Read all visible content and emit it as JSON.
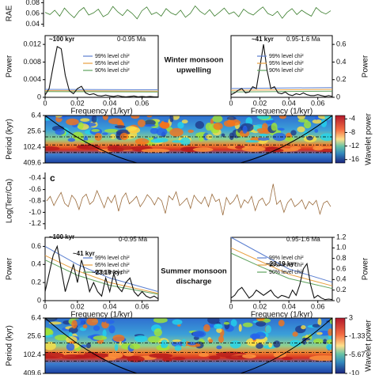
{
  "chart_data": [
    {
      "type": "line",
      "ylabel": "RAE",
      "color": "#3a7d2c",
      "ylim": [
        0.035,
        0.085
      ],
      "yticks": [
        0.04,
        0.06,
        0.08
      ],
      "values": [
        0.062,
        0.058,
        0.066,
        0.055,
        0.07,
        0.06,
        0.052,
        0.064,
        0.071,
        0.057,
        0.061,
        0.068,
        0.054,
        0.059,
        0.073,
        0.063,
        0.056,
        0.067,
        0.06,
        0.05,
        0.065,
        0.072,
        0.058,
        0.062,
        0.055,
        0.069,
        0.061,
        0.057,
        0.066,
        0.053,
        0.06,
        0.074,
        0.064,
        0.058,
        0.067,
        0.055,
        0.062,
        0.07,
        0.059,
        0.063,
        0.054,
        0.068,
        0.061,
        0.057,
        0.065,
        0.072,
        0.06,
        0.056,
        0.064,
        0.051,
        0.062,
        0.069,
        0.058,
        0.066,
        0.06,
        0.055,
        0.071,
        0.063,
        0.059,
        0.065
      ]
    },
    {
      "type": "line",
      "ylabel": "Power",
      "xlabel": "Frequency (1/kyr)",
      "color": "#111111",
      "xlim": [
        0,
        0.07
      ],
      "xticks": [
        0,
        0.02,
        0.04,
        0.06
      ],
      "ylim": [
        0,
        0.014
      ],
      "yticks": [
        0,
        0.004,
        0.008,
        0.012
      ],
      "x": [
        0,
        0.0025,
        0.005,
        0.0075,
        0.01,
        0.0125,
        0.015,
        0.0175,
        0.02,
        0.0225,
        0.025,
        0.0275,
        0.03,
        0.0325,
        0.035,
        0.0375,
        0.04,
        0.0425,
        0.045,
        0.0475,
        0.05,
        0.0525,
        0.055,
        0.0575,
        0.06,
        0.0625,
        0.065,
        0.0675,
        0.07
      ],
      "values": [
        0.0005,
        0.002,
        0.007,
        0.0115,
        0.011,
        0.005,
        0.0015,
        0.0008,
        0.002,
        0.0025,
        0.001,
        0.0006,
        0.0008,
        0.0004,
        0.0003,
        0.0005,
        0.0003,
        0.0002,
        0.0004,
        0.0002,
        0.0001,
        0.0002,
        0.0003,
        0.0001,
        0.0002,
        0.0001,
        0.0002,
        0.0001,
        0.0001
      ],
      "series": [
        {
          "name": "99% level chi²",
          "color": "#5b7fd0",
          "x": [
            0,
            0.07
          ],
          "values": [
            0.0018,
            0.0017
          ]
        },
        {
          "name": "95% level chi²",
          "color": "#e8a040",
          "x": [
            0,
            0.07
          ],
          "values": [
            0.0015,
            0.0014
          ]
        },
        {
          "name": "90% level chi²",
          "color": "#5fa35f",
          "x": [
            0,
            0.07
          ],
          "values": [
            0.0013,
            0.0012
          ]
        }
      ],
      "annotations": [
        "~100 kyr",
        "0-0.95 Ma"
      ],
      "note": [
        "Winter monsoon",
        "upwelling"
      ]
    },
    {
      "type": "line",
      "ylabel": "Power",
      "xlabel": "Frequency (1/kyr)",
      "y_axis": "right",
      "color": "#111111",
      "xlim": [
        0,
        0.07
      ],
      "xticks": [
        0,
        0.02,
        0.04,
        0.06
      ],
      "ylim": [
        0,
        0.7
      ],
      "yticks": [
        0,
        0.2,
        0.4,
        0.6
      ],
      "x": [
        0,
        0.0025,
        0.005,
        0.0075,
        0.01,
        0.0125,
        0.015,
        0.0175,
        0.02,
        0.0225,
        0.025,
        0.0275,
        0.03,
        0.0325,
        0.035,
        0.0375,
        0.04,
        0.0425,
        0.045,
        0.0475,
        0.05,
        0.0525,
        0.055,
        0.0575,
        0.06,
        0.0625,
        0.065,
        0.0675,
        0.07
      ],
      "values": [
        0.03,
        0.05,
        0.08,
        0.1,
        0.05,
        0.06,
        0.12,
        0.1,
        0.35,
        0.6,
        0.3,
        0.1,
        0.12,
        0.05,
        0.04,
        0.06,
        0.03,
        0.02,
        0.04,
        0.03,
        0.05,
        0.03,
        0.02,
        0.02,
        0.03,
        0.02,
        0.01,
        0.02,
        0.01
      ],
      "series": [
        {
          "name": "99% level chi²",
          "color": "#5b7fd0",
          "x": [
            0,
            0.07
          ],
          "values": [
            0.1,
            0.11
          ]
        },
        {
          "name": "95% level chi²",
          "color": "#e8a040",
          "x": [
            0,
            0.07
          ],
          "values": [
            0.08,
            0.09
          ]
        },
        {
          "name": "90% level chi²",
          "color": "#5fa35f",
          "x": [
            0,
            0.07
          ],
          "values": [
            0.06,
            0.07
          ]
        }
      ],
      "annotations": [
        "~41 kyr",
        "0.95-1.6 Ma"
      ]
    },
    {
      "type": "heatmap",
      "ylabel": "Period (kyr)",
      "ylog": true,
      "y_reversed": true,
      "ylim": [
        6.4,
        409.6
      ],
      "yticks": [
        6.4,
        25.6,
        102.4,
        409.6
      ],
      "clabel": "Wavelet power",
      "clim": [
        -17,
        -3
      ],
      "colorbar_ticks": [
        -4,
        -8,
        -12,
        -16
      ]
    },
    {
      "type": "line",
      "panel_label": "c",
      "ylabel": "Log(Terr/Ca)",
      "color": "#9a6b3c",
      "ylim": [
        -1.3,
        -0.3
      ],
      "yticks": [
        -0.4,
        -0.6,
        -0.8,
        {
          "value": -1,
          "label": "-1.0"
        },
        -1.2
      ],
      "values": [
        -0.8,
        -0.72,
        -0.88,
        -0.76,
        -0.65,
        -0.84,
        -0.9,
        -0.7,
        -0.78,
        -0.95,
        -0.74,
        -0.68,
        -0.86,
        -0.8,
        -0.62,
        -0.77,
        -0.92,
        -0.73,
        -0.83,
        -0.7,
        -0.98,
        -0.75,
        -0.66,
        -0.85,
        -0.79,
        -0.72,
        -0.9,
        -0.81,
        -0.69,
        -0.76,
        -0.87,
        -0.74,
        -0.8,
        -1.02,
        -0.71,
        -0.78,
        -0.64,
        -0.88,
        -0.82,
        -0.75,
        -0.93,
        -0.7,
        -0.79,
        -0.85,
        -0.73,
        -0.9,
        -0.68,
        -0.81,
        -0.77,
        -1.05,
        -0.74,
        -0.86,
        -0.8,
        -0.69,
        -0.92,
        -0.78,
        -0.84,
        -0.72,
        -0.97,
        -0.8,
        -0.75,
        -0.88,
        -0.82,
        -0.5,
        -0.86,
        -0.79,
        -1.0,
        -0.83,
        -0.76,
        -0.9,
        -0.85,
        -0.78,
        -0.94,
        -0.81,
        -0.87,
        -0.79,
        -1.03,
        -0.84,
        -0.8,
        -0.9
      ]
    },
    {
      "type": "line",
      "ylabel": "Power",
      "xlabel": "Frequency (1/kyr)",
      "color": "#111111",
      "xlim": [
        0,
        0.07
      ],
      "xticks": [
        0,
        0.02,
        0.04,
        0.06
      ],
      "ylim": [
        0,
        0.7
      ],
      "yticks": [
        0,
        0.2,
        0.4,
        0.6
      ],
      "x": [
        0,
        0.0025,
        0.005,
        0.0075,
        0.01,
        0.0125,
        0.015,
        0.0175,
        0.02,
        0.0225,
        0.025,
        0.0275,
        0.03,
        0.0325,
        0.035,
        0.0375,
        0.04,
        0.0425,
        0.045,
        0.0475,
        0.05,
        0.0525,
        0.055,
        0.0575,
        0.06,
        0.0625,
        0.065,
        0.0675,
        0.07
      ],
      "values": [
        0.1,
        0.3,
        0.5,
        0.6,
        0.35,
        0.1,
        0.25,
        0.4,
        0.2,
        0.45,
        0.3,
        0.1,
        0.2,
        0.1,
        0.05,
        0.25,
        0.1,
        0.3,
        0.15,
        0.1,
        0.2,
        0.25,
        0.1,
        0.05,
        0.1,
        0.05,
        0.03,
        0.05,
        0.02
      ],
      "series": [
        {
          "name": "99% level chi²",
          "color": "#5b7fd0",
          "x": [
            0,
            0.02,
            0.04,
            0.07
          ],
          "values": [
            0.6,
            0.4,
            0.25,
            0.1
          ]
        },
        {
          "name": "95% level chi²",
          "color": "#e8a040",
          "x": [
            0,
            0.02,
            0.04,
            0.07
          ],
          "values": [
            0.5,
            0.33,
            0.2,
            0.08
          ]
        },
        {
          "name": "90% level chi²",
          "color": "#5fa35f",
          "x": [
            0,
            0.02,
            0.04,
            0.07
          ],
          "values": [
            0.45,
            0.28,
            0.17,
            0.07
          ]
        }
      ],
      "annotations": [
        "~100 kyr",
        "~41 kyr",
        "~23,19 kyr",
        "0-0.95 Ma"
      ],
      "note": [
        "Summer monsoon",
        "discharge"
      ]
    },
    {
      "type": "line",
      "ylabel": "Power",
      "xlabel": "Frequency (1/kyr)",
      "y_axis": "right",
      "color": "#111111",
      "xlim": [
        0,
        0.07
      ],
      "xticks": [
        0,
        0.02,
        0.04,
        0.06
      ],
      "ylim": [
        0,
        1.2
      ],
      "yticks": [
        0,
        0.2,
        0.4,
        0.6,
        0.8,
        {
          "value": 1,
          "label": "1.0"
        },
        1.2
      ],
      "x": [
        0,
        0.0025,
        0.005,
        0.0075,
        0.01,
        0.0125,
        0.015,
        0.0175,
        0.02,
        0.0225,
        0.025,
        0.0275,
        0.03,
        0.0325,
        0.035,
        0.0375,
        0.04,
        0.0425,
        0.045,
        0.0475,
        0.05,
        0.0525,
        0.055,
        0.0575,
        0.06,
        0.0625,
        0.065,
        0.0675,
        0.07
      ],
      "values": [
        0.05,
        0.1,
        0.2,
        0.25,
        0.15,
        0.05,
        0.1,
        0.2,
        0.15,
        0.1,
        0.15,
        0.2,
        0.1,
        0.05,
        0.1,
        0.08,
        0.05,
        0.2,
        0.1,
        0.3,
        0.6,
        0.7,
        0.3,
        0.05,
        0.1,
        0.05,
        0.02,
        0.03,
        0.02
      ],
      "series": [
        {
          "name": "99% level chi²",
          "color": "#5b7fd0",
          "x": [
            0,
            0.02,
            0.04,
            0.07
          ],
          "values": [
            1.2,
            0.9,
            0.6,
            0.35
          ]
        },
        {
          "name": "95% level chi²",
          "color": "#e8a040",
          "x": [
            0,
            0.02,
            0.04,
            0.07
          ],
          "values": [
            1.0,
            0.75,
            0.5,
            0.28
          ]
        },
        {
          "name": "90% level chi²",
          "color": "#5fa35f",
          "x": [
            0,
            0.02,
            0.04,
            0.07
          ],
          "values": [
            0.9,
            0.65,
            0.42,
            0.23
          ]
        }
      ],
      "annotations": [
        "~23,19 kyr",
        "0.95-1.6 Ma"
      ]
    },
    {
      "type": "heatmap",
      "ylabel": "Period (kyr)",
      "ylog": true,
      "y_reversed": true,
      "ylim": [
        6.4,
        409.6
      ],
      "yticks": [
        6.4,
        25.6,
        102.4,
        409.6
      ],
      "clabel": "Wavelet power",
      "clim": [
        -10,
        3
      ],
      "colorbar_ticks": [
        3,
        -1.33,
        -5.67,
        -10
      ]
    }
  ]
}
